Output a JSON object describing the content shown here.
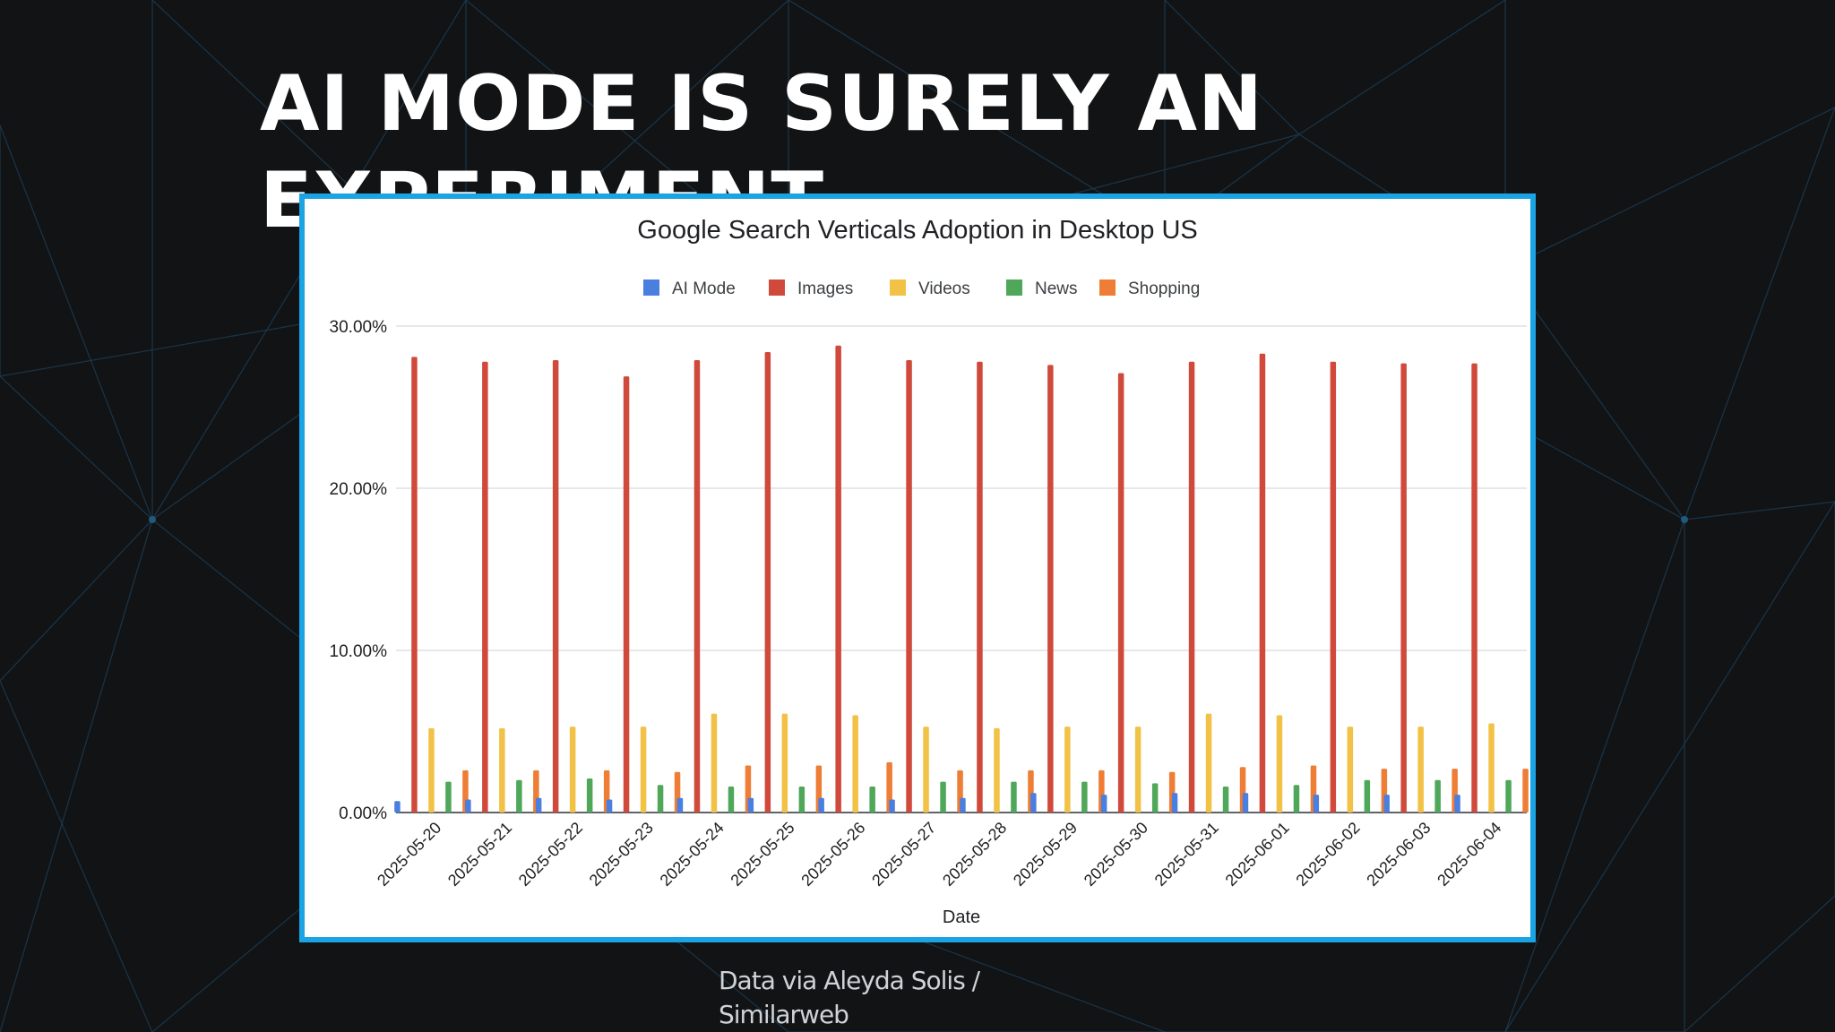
{
  "slide": {
    "title": "AI MODE IS SURELY AN EXPERIMENT",
    "caption_line1": "Data via Aleyda Solis /",
    "caption_line2": "Similarweb"
  },
  "colors": {
    "background": "#121315",
    "web_lines": "#1b3a4f",
    "frame_border": "#1ba4e3"
  },
  "chart_data": {
    "type": "bar",
    "title": "Google Search Verticals Adoption in Desktop US",
    "xlabel": "Date",
    "ylabel": "",
    "ylim": [
      0,
      30
    ],
    "y_ticks": [
      "0.00%",
      "10.00%",
      "20.00%",
      "30.00%"
    ],
    "y_tick_values": [
      0,
      10,
      20,
      30
    ],
    "grid": true,
    "legend_position": "top",
    "categories": [
      "2025-05-20",
      "2025-05-21",
      "2025-05-22",
      "2025-05-23",
      "2025-05-24",
      "2025-05-25",
      "2025-05-26",
      "2025-05-27",
      "2025-05-28",
      "2025-05-29",
      "2025-05-30",
      "2025-05-31",
      "2025-06-01",
      "2025-06-02",
      "2025-06-03",
      "2025-06-04"
    ],
    "series": [
      {
        "name": "AI Mode",
        "color": "#4a7fe0",
        "values": [
          0.7,
          0.8,
          0.9,
          0.8,
          0.9,
          0.9,
          0.9,
          0.8,
          0.9,
          1.2,
          1.1,
          1.2,
          1.2,
          1.1,
          1.1,
          1.1
        ]
      },
      {
        "name": "Images",
        "color": "#d04a3c",
        "values": [
          28.1,
          27.8,
          27.9,
          26.9,
          27.9,
          28.4,
          28.8,
          27.9,
          27.8,
          27.6,
          27.1,
          27.8,
          28.3,
          27.8,
          27.7,
          27.7
        ]
      },
      {
        "name": "Videos",
        "color": "#f2c246",
        "values": [
          5.2,
          5.2,
          5.3,
          5.3,
          6.1,
          6.1,
          6.0,
          5.3,
          5.2,
          5.3,
          5.3,
          6.1,
          6.0,
          5.3,
          5.3,
          5.5
        ]
      },
      {
        "name": "News",
        "color": "#4fa75a",
        "values": [
          1.9,
          2.0,
          2.1,
          1.7,
          1.6,
          1.6,
          1.6,
          1.9,
          1.9,
          1.9,
          1.8,
          1.6,
          1.7,
          2.0,
          2.0,
          2.0
        ]
      },
      {
        "name": "Shopping",
        "color": "#ee7d36",
        "values": [
          2.6,
          2.6,
          2.6,
          2.5,
          2.9,
          2.9,
          3.1,
          2.6,
          2.6,
          2.6,
          2.5,
          2.8,
          2.9,
          2.7,
          2.7,
          2.7
        ]
      }
    ]
  }
}
